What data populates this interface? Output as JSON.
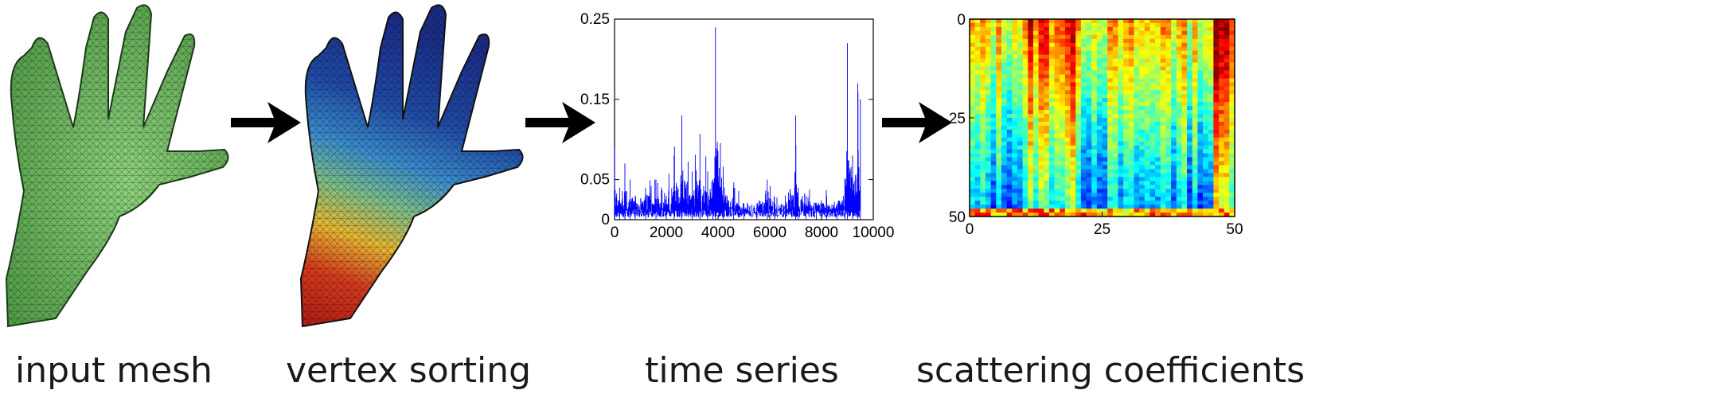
{
  "captions": {
    "input_mesh": "input mesh",
    "vertex_sorting": "vertex sorting",
    "time_series": "time series",
    "scattering_coefficients": "scattering coefficients"
  },
  "colors": {
    "mesh_green": "#6fbf5f",
    "series_blue": "#0000ff",
    "arrow_black": "#000000"
  },
  "chart_data": [
    {
      "type": "line",
      "xlim": [
        0,
        10000
      ],
      "ylim": [
        0,
        0.25
      ],
      "x_ticks": [
        "0",
        "2000",
        "4000",
        "6000",
        "8000",
        "10000"
      ],
      "y_ticks": [
        "0",
        "0.05",
        "0.15",
        "0.25"
      ],
      "series": [
        {
          "x": [
            0,
            200,
            400,
            600,
            800,
            1200,
            1600,
            2000,
            2300,
            2600,
            3000,
            3300,
            3600,
            3800,
            3900,
            4200,
            4600,
            5000,
            5500,
            5900,
            6200,
            6600,
            7000,
            7100,
            7400,
            7800,
            8200,
            8600,
            8900,
            9000,
            9200,
            9400,
            9500
          ],
          "y": [
            0.09,
            0.04,
            0.07,
            0.05,
            0.03,
            0.04,
            0.05,
            0.03,
            0.08,
            0.13,
            0.06,
            0.1,
            0.06,
            0.05,
            0.24,
            0.06,
            0.04,
            0.02,
            0.02,
            0.05,
            0.02,
            0.03,
            0.13,
            0.04,
            0.03,
            0.02,
            0.03,
            0.02,
            0.05,
            0.22,
            0.08,
            0.17,
            0.15
          ]
        }
      ]
    },
    {
      "type": "heatmap",
      "xlim": [
        0,
        50
      ],
      "ylim": [
        0,
        50
      ],
      "x_ticks": [
        "0",
        "25",
        "50"
      ],
      "y_ticks": [
        "0",
        "25",
        "50"
      ]
    }
  ]
}
